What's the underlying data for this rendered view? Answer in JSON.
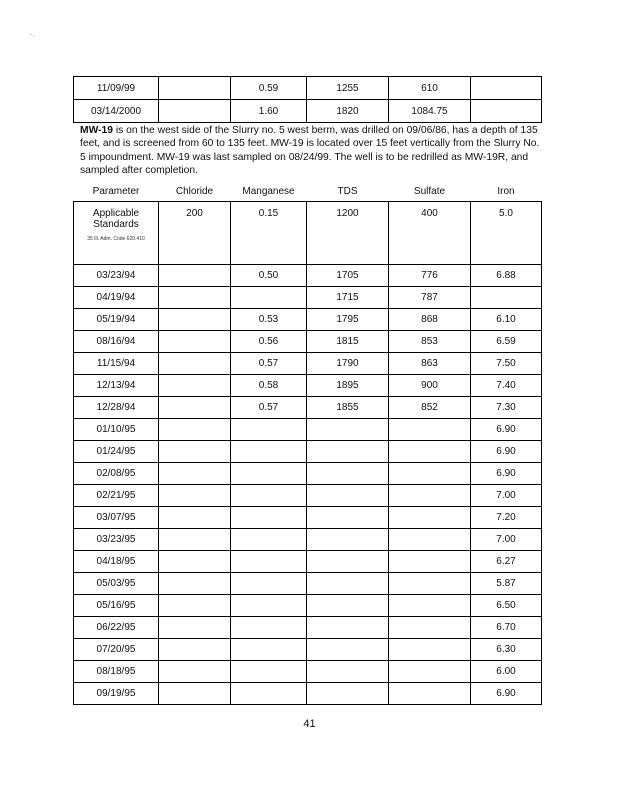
{
  "top_rows": [
    {
      "date": "11/09/99",
      "chloride": "",
      "manganese": "0.59",
      "tds": "1255",
      "sulfate": "610",
      "iron": ""
    },
    {
      "date": "03/14/2000",
      "chloride": "",
      "manganese": "1.60",
      "tds": "1820",
      "sulfate": "1084.75",
      "iron": ""
    }
  ],
  "paragraph": {
    "well_id": "MW-19",
    "text": " is on the west side of the Slurry no. 5 west berm, was drilled on 09/06/86, has a depth of 135 feet, and is screened from 60 to 135 feet.  MW-19 is located over 15 feet vertically from the Slurry No. 5 impoundment.  MW-19 was last sampled on 08/24/99.  The well is to be redrilled as MW-19R, and sampled after completion."
  },
  "table": {
    "headers": [
      "Parameter",
      "Chloride",
      "Manganese",
      "TDS",
      "Sulfate",
      "Iron"
    ],
    "standards": {
      "label": "Applicable Standards",
      "note": "35 Ill. Adm. Code 620.410",
      "values": [
        "200",
        "0.15",
        "1200",
        "400",
        "5.0"
      ]
    },
    "rows": [
      {
        "date": "03/23/94",
        "chloride": "",
        "manganese": "0.50",
        "tds": "1705",
        "sulfate": "776",
        "iron": "6.88"
      },
      {
        "date": "04/19/94",
        "chloride": "",
        "manganese": "",
        "tds": "1715",
        "sulfate": "787",
        "iron": ""
      },
      {
        "date": "05/19/94",
        "chloride": "",
        "manganese": "0.53",
        "tds": "1795",
        "sulfate": "868",
        "iron": "6.10"
      },
      {
        "date": "08/16/94",
        "chloride": "",
        "manganese": "0.56",
        "tds": "1815",
        "sulfate": "853",
        "iron": "6.59"
      },
      {
        "date": "11/15/94",
        "chloride": "",
        "manganese": "0.57",
        "tds": "1790",
        "sulfate": "863",
        "iron": "7.50"
      },
      {
        "date": "12/13/94",
        "chloride": "",
        "manganese": "0.58",
        "tds": "1895",
        "sulfate": "900",
        "iron": "7.40"
      },
      {
        "date": "12/28/94",
        "chloride": "",
        "manganese": "0.57",
        "tds": "1855",
        "sulfate": "852",
        "iron": "7.30"
      },
      {
        "date": "01/10/95",
        "chloride": "",
        "manganese": "",
        "tds": "",
        "sulfate": "",
        "iron": "6.90"
      },
      {
        "date": "01/24/95",
        "chloride": "",
        "manganese": "",
        "tds": "",
        "sulfate": "",
        "iron": "6.90"
      },
      {
        "date": "02/08/95",
        "chloride": "",
        "manganese": "",
        "tds": "",
        "sulfate": "",
        "iron": "6.90"
      },
      {
        "date": "02/21/95",
        "chloride": "",
        "manganese": "",
        "tds": "",
        "sulfate": "",
        "iron": "7.00"
      },
      {
        "date": "03/07/95",
        "chloride": "",
        "manganese": "",
        "tds": "",
        "sulfate": "",
        "iron": "7.20"
      },
      {
        "date": "03/23/95",
        "chloride": "",
        "manganese": "",
        "tds": "",
        "sulfate": "",
        "iron": "7.00"
      },
      {
        "date": "04/18/95",
        "chloride": "",
        "manganese": "",
        "tds": "",
        "sulfate": "",
        "iron": "6.27"
      },
      {
        "date": "05/03/95",
        "chloride": "",
        "manganese": "",
        "tds": "",
        "sulfate": "",
        "iron": "5.87"
      },
      {
        "date": "05/16/95",
        "chloride": "",
        "manganese": "",
        "tds": "",
        "sulfate": "",
        "iron": "6.50"
      },
      {
        "date": "06/22/95",
        "chloride": "",
        "manganese": "",
        "tds": "",
        "sulfate": "",
        "iron": "6.70"
      },
      {
        "date": "07/20/95",
        "chloride": "",
        "manganese": "",
        "tds": "",
        "sulfate": "",
        "iron": "6.30"
      },
      {
        "date": "08/18/95",
        "chloride": "",
        "manganese": "",
        "tds": "",
        "sulfate": "",
        "iron": "6.00"
      },
      {
        "date": "09/19/95",
        "chloride": "",
        "manganese": "",
        "tds": "",
        "sulfate": "",
        "iron": "6.90"
      }
    ]
  },
  "page_number": "41"
}
